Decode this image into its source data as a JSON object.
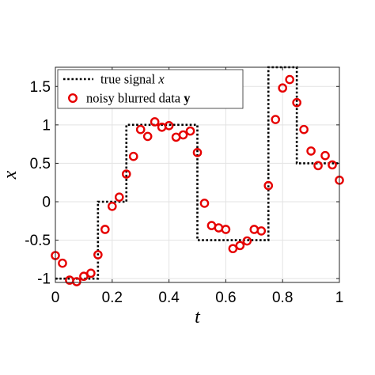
{
  "chart_data": {
    "type": "line",
    "xlabel": "t",
    "ylabel": "x",
    "xlim": [
      0,
      1
    ],
    "ylim": [
      -1.05,
      1.75
    ],
    "xticks": [
      0,
      0.2,
      0.4,
      0.6,
      0.8,
      1
    ],
    "xtick_labels": [
      "0",
      "0.2",
      "0.4",
      "0.6",
      "0.8",
      "1"
    ],
    "yticks": [
      -1,
      -0.5,
      0,
      0.5,
      1,
      1.5
    ],
    "ytick_labels": [
      "-1",
      "-0.5",
      "0",
      "0.5",
      "1",
      "1.5"
    ],
    "grid": true,
    "legend_position": "top-left",
    "legend": {
      "true_signal_prefix": "true signal ",
      "true_signal_symbol": "x",
      "noisy_data_prefix": "noisy blurred data ",
      "noisy_data_symbol": "y"
    },
    "series": [
      {
        "kind": "step",
        "style": "dotted",
        "color": "#000000",
        "x": [
          0,
          0.15,
          0.15,
          0.25,
          0.25,
          0.5,
          0.5,
          0.75,
          0.75,
          0.85,
          0.85,
          1
        ],
        "y": [
          -1,
          -1,
          0,
          0,
          1,
          1,
          -0.5,
          -0.5,
          1.75,
          1.75,
          0.5,
          0.5
        ]
      },
      {
        "kind": "scatter",
        "marker": "circle",
        "color": "#e60000",
        "x": [
          0,
          0.025,
          0.05,
          0.075,
          0.1,
          0.125,
          0.15,
          0.175,
          0.2,
          0.225,
          0.25,
          0.275,
          0.3,
          0.325,
          0.35,
          0.375,
          0.4,
          0.425,
          0.45,
          0.475,
          0.5,
          0.525,
          0.55,
          0.575,
          0.6,
          0.625,
          0.65,
          0.675,
          0.7,
          0.725,
          0.75,
          0.775,
          0.8,
          0.825,
          0.85,
          0.875,
          0.9,
          0.925,
          0.95,
          0.975,
          1
        ],
        "y": [
          -0.7,
          -0.8,
          -1.02,
          -1.04,
          -0.97,
          -0.93,
          -0.69,
          -0.36,
          -0.06,
          0.06,
          0.36,
          0.59,
          0.94,
          0.85,
          1.04,
          0.97,
          0.99,
          0.84,
          0.87,
          0.92,
          0.64,
          -0.02,
          -0.31,
          -0.34,
          -0.36,
          -0.61,
          -0.57,
          -0.51,
          -0.36,
          -0.38,
          0.21,
          1.07,
          1.48,
          1.59,
          1.29,
          0.94,
          0.66,
          0.47,
          0.6,
          0.48,
          0.28
        ]
      }
    ]
  }
}
